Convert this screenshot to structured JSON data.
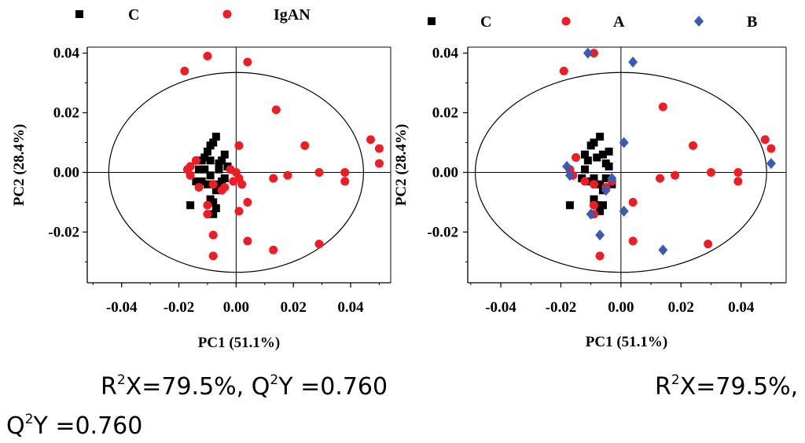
{
  "chart_data": [
    {
      "type": "scatter",
      "xlabel": "PC1 (51.1%)",
      "ylabel": "PC2 (28.4%)",
      "xlim": [
        -0.052,
        0.054
      ],
      "ylim": [
        -0.037,
        0.042
      ],
      "xticks": [
        "-0.04",
        "-0.02",
        "0.00",
        "0.02",
        "0.04"
      ],
      "yticks": [
        "0.04",
        "0.02",
        "0.00",
        "-0.02"
      ],
      "ellipse": {
        "cx": 0.0,
        "cy": 0.0,
        "rx": 0.0445,
        "ry": 0.0335
      },
      "legend_position": "top",
      "series": [
        {
          "name": "C",
          "marker": "square",
          "color": "#000000",
          "points": [
            [
              -0.011,
              0.005
            ],
            [
              -0.01,
              0.007
            ],
            [
              -0.009,
              0.009
            ],
            [
              -0.008,
              0.01
            ],
            [
              -0.007,
              0.012
            ],
            [
              -0.012,
              0.004
            ],
            [
              -0.011,
              0.001
            ],
            [
              -0.013,
              0.001
            ],
            [
              -0.014,
              -0.003
            ],
            [
              -0.012,
              -0.003
            ],
            [
              -0.009,
              0.004
            ],
            [
              -0.006,
              0.003
            ],
            [
              -0.005,
              0.004
            ],
            [
              -0.004,
              0.006
            ],
            [
              -0.009,
              -0.001
            ],
            [
              -0.01,
              -0.004
            ],
            [
              -0.009,
              -0.009
            ],
            [
              -0.008,
              -0.01
            ],
            [
              -0.007,
              -0.012
            ],
            [
              -0.008,
              -0.014
            ],
            [
              -0.006,
              -0.004
            ],
            [
              -0.007,
              -0.006
            ],
            [
              -0.005,
              -0.003
            ],
            [
              -0.016,
              -0.011
            ],
            [
              -0.003,
              0.002
            ],
            [
              -0.004,
              -0.002
            ],
            [
              -0.006,
              0.001
            ]
          ]
        },
        {
          "name": "IgAN",
          "marker": "circle",
          "color": "#ee1c25",
          "points": [
            [
              -0.01,
              0.039
            ],
            [
              -0.018,
              0.034
            ],
            [
              0.004,
              0.037
            ],
            [
              0.014,
              0.021
            ],
            [
              0.047,
              0.011
            ],
            [
              0.05,
              0.008
            ],
            [
              0.05,
              0.003
            ],
            [
              0.001,
              0.009
            ],
            [
              0.024,
              0.009
            ],
            [
              -0.014,
              0.004
            ],
            [
              -0.016,
              0.002
            ],
            [
              -0.017,
              0.001
            ],
            [
              -0.013,
              -0.005
            ],
            [
              0.0,
              0.0
            ],
            [
              0.013,
              -0.002
            ],
            [
              0.018,
              -0.001
            ],
            [
              0.029,
              0.0
            ],
            [
              0.038,
              0.0
            ],
            [
              0.038,
              -0.003
            ],
            [
              -0.008,
              -0.004
            ],
            [
              -0.005,
              -0.006
            ],
            [
              -0.004,
              -0.005
            ],
            [
              -0.001,
              -0.003
            ],
            [
              0.001,
              -0.002
            ],
            [
              -0.01,
              -0.011
            ],
            [
              -0.01,
              -0.014
            ],
            [
              -0.008,
              -0.021
            ],
            [
              0.004,
              -0.01
            ],
            [
              0.001,
              -0.013
            ],
            [
              -0.008,
              -0.028
            ],
            [
              0.004,
              -0.023
            ],
            [
              0.013,
              -0.026
            ],
            [
              0.029,
              -0.024
            ],
            [
              -0.016,
              -0.001
            ],
            [
              -0.002,
              0.001
            ],
            [
              0.002,
              -0.004
            ]
          ]
        }
      ]
    },
    {
      "type": "scatter",
      "xlabel": "PC1 (51.1%)",
      "ylabel": "PC2 (28.4%)",
      "xlim": [
        -0.051,
        0.055
      ],
      "ylim": [
        -0.037,
        0.042
      ],
      "xticks": [
        "-0.04",
        "-0.02",
        "0.00",
        "0.02",
        "0.04"
      ],
      "yticks": [
        "0.04",
        "0.02",
        "0.00",
        "-0.02"
      ],
      "ellipse": {
        "cx": 0.0,
        "cy": 0.0,
        "rx": 0.0485,
        "ry": 0.0335
      },
      "legend_position": "top",
      "series": [
        {
          "name": "C",
          "marker": "square",
          "color": "#000000",
          "points": [
            [
              -0.01,
              0.009
            ],
            [
              -0.009,
              0.01
            ],
            [
              -0.007,
              0.012
            ],
            [
              -0.012,
              0.006
            ],
            [
              -0.011,
              0.004
            ],
            [
              -0.012,
              0.001
            ],
            [
              -0.013,
              -0.002
            ],
            [
              -0.01,
              -0.003
            ],
            [
              -0.008,
              0.005
            ],
            [
              -0.006,
              0.006
            ],
            [
              -0.005,
              0.003
            ],
            [
              -0.004,
              0.007
            ],
            [
              -0.009,
              -0.002
            ],
            [
              -0.007,
              -0.004
            ],
            [
              -0.006,
              -0.006
            ],
            [
              -0.009,
              -0.009
            ],
            [
              -0.008,
              -0.011
            ],
            [
              -0.006,
              -0.011
            ],
            [
              -0.007,
              -0.013
            ],
            [
              -0.017,
              -0.011
            ],
            [
              -0.005,
              -0.002
            ],
            [
              -0.004,
              0.002
            ],
            [
              -0.003,
              -0.004
            ]
          ]
        },
        {
          "name": "A",
          "marker": "circle",
          "color": "#ee1c25",
          "points": [
            [
              -0.019,
              0.034
            ],
            [
              -0.009,
              0.04
            ],
            [
              0.014,
              0.022
            ],
            [
              0.048,
              0.011
            ],
            [
              0.05,
              0.008
            ],
            [
              0.024,
              0.009
            ],
            [
              -0.015,
              0.005
            ],
            [
              -0.017,
              0.001
            ],
            [
              -0.016,
              -0.001
            ],
            [
              0.013,
              -0.002
            ],
            [
              0.018,
              -0.001
            ],
            [
              0.03,
              0.0
            ],
            [
              0.039,
              0.0
            ],
            [
              0.039,
              -0.003
            ],
            [
              -0.012,
              -0.003
            ],
            [
              -0.009,
              -0.004
            ],
            [
              -0.005,
              -0.005
            ],
            [
              -0.003,
              -0.003
            ],
            [
              0.004,
              -0.01
            ],
            [
              -0.009,
              -0.011
            ],
            [
              -0.009,
              -0.014
            ],
            [
              0.004,
              -0.023
            ],
            [
              -0.007,
              -0.028
            ],
            [
              0.029,
              -0.024
            ]
          ]
        },
        {
          "name": "B",
          "marker": "diamond",
          "color": "#3a5bb5",
          "points": [
            [
              -0.011,
              0.04
            ],
            [
              0.004,
              0.037
            ],
            [
              0.001,
              0.01
            ],
            [
              0.05,
              0.003
            ],
            [
              -0.018,
              0.002
            ],
            [
              -0.017,
              -0.001
            ],
            [
              -0.005,
              -0.006
            ],
            [
              -0.003,
              -0.002
            ],
            [
              0.001,
              -0.013
            ],
            [
              -0.01,
              -0.014
            ],
            [
              -0.007,
              -0.021
            ],
            [
              0.014,
              -0.026
            ]
          ]
        }
      ]
    }
  ],
  "captions": {
    "left": {
      "r_prefix": "R",
      "r_exp": "2",
      "r_rest": "X=79.5%, ",
      "q_prefix": "Q",
      "q_exp": "2",
      "q_rest": "Y =0.760"
    },
    "right_line1": {
      "r_prefix": "R",
      "r_exp": "2",
      "r_rest": "X=79.5%,"
    },
    "right_line2": {
      "q_prefix": "Q",
      "q_exp": "2",
      "q_rest": "Y =0.760"
    }
  }
}
